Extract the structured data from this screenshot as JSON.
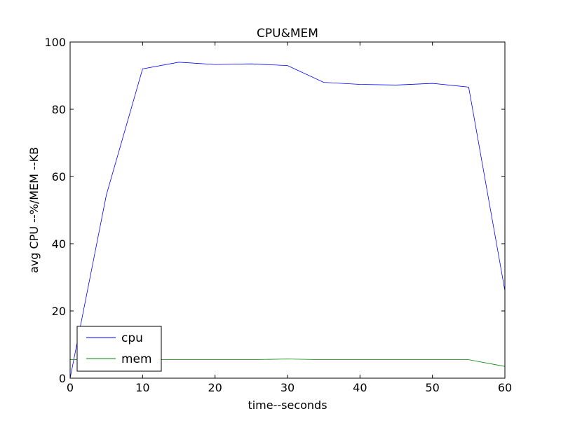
{
  "chart_data": {
    "type": "line",
    "title": "CPU&MEM",
    "xlabel": "time--seconds",
    "ylabel": "avg CPU --%/MEM --KB",
    "xlim": [
      0,
      60
    ],
    "ylim": [
      0,
      100
    ],
    "xticks": [
      0,
      10,
      20,
      30,
      40,
      50,
      60
    ],
    "yticks": [
      0,
      20,
      40,
      60,
      80,
      100
    ],
    "grid": false,
    "legend_position": "lower-left",
    "series": [
      {
        "name": "cpu",
        "color": "#0000ff",
        "x": [
          0,
          5,
          10,
          15,
          20,
          25,
          30,
          35,
          40,
          45,
          50,
          55,
          60
        ],
        "y": [
          0,
          54.5,
          92.0,
          94.0,
          93.3,
          93.5,
          93.0,
          88.0,
          87.4,
          87.2,
          87.7,
          86.6,
          26.0
        ]
      },
      {
        "name": "mem",
        "color": "#008000",
        "x": [
          0,
          5,
          10,
          15,
          20,
          25,
          30,
          35,
          40,
          45,
          50,
          55,
          60
        ],
        "y": [
          5.5,
          5.5,
          5.5,
          5.5,
          5.5,
          5.5,
          5.7,
          5.5,
          5.5,
          5.5,
          5.5,
          5.5,
          3.5
        ]
      }
    ]
  }
}
